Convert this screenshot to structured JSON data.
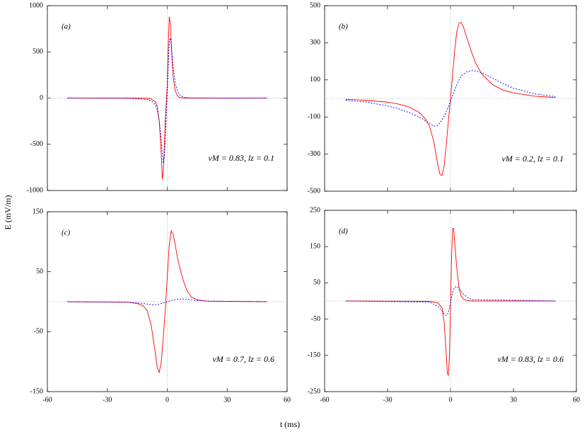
{
  "xlabel": "t (ms)",
  "ylabel": "E (mV/m)",
  "chart_data": [
    {
      "type": "line",
      "label": "(a)",
      "annotation": "vM = 0.83, lz = 0.1",
      "xlim": [
        -60,
        60
      ],
      "xticks": [
        -60,
        -30,
        0,
        30,
        60
      ],
      "ylim": [
        -1000,
        1000
      ],
      "yticks": [
        -1000,
        -500,
        0,
        500,
        1000
      ],
      "zero_lines": true,
      "x": [
        -50,
        -20,
        -10,
        -8,
        -6,
        -5,
        -4,
        -3,
        -2.5,
        -2,
        -1.5,
        -1,
        -0.5,
        0,
        0.5,
        1,
        1.5,
        2,
        2.5,
        3,
        4,
        5,
        6,
        8,
        10,
        20,
        50
      ],
      "series": [
        {
          "color": "#ff0000",
          "dash": "none",
          "values": [
            0,
            0,
            -2,
            -10,
            -40,
            -90,
            -250,
            -600,
            -880,
            -800,
            -550,
            -250,
            -50,
            150,
            550,
            880,
            820,
            600,
            380,
            220,
            80,
            25,
            8,
            2,
            0,
            0,
            0
          ]
        },
        {
          "color": "#0000ff",
          "dash": "2,2",
          "values": [
            0,
            -2,
            -15,
            -30,
            -70,
            -130,
            -250,
            -450,
            -600,
            -700,
            -650,
            -450,
            -200,
            50,
            350,
            600,
            650,
            580,
            450,
            330,
            170,
            80,
            40,
            10,
            3,
            0,
            0
          ]
        }
      ]
    },
    {
      "type": "line",
      "label": "(b)",
      "annotation": "vM = 0.2, lz = 0.1",
      "xlim": [
        -60,
        60
      ],
      "xticks": [
        -60,
        -30,
        0,
        30,
        60
      ],
      "ylim": [
        -500,
        500
      ],
      "yticks": [
        -500,
        -300,
        -100,
        100,
        300,
        500
      ],
      "zero_lines": true,
      "x": [
        -50,
        -40,
        -30,
        -25,
        -20,
        -15,
        -12,
        -10,
        -8,
        -6,
        -5,
        -4,
        -3,
        -2,
        -1,
        0,
        1,
        2,
        3,
        4,
        5,
        6,
        8,
        10,
        12,
        15,
        20,
        25,
        30,
        40,
        50
      ],
      "series": [
        {
          "color": "#ff0000",
          "dash": "none",
          "values": [
            -5,
            -10,
            -20,
            -30,
            -45,
            -75,
            -110,
            -150,
            -230,
            -360,
            -410,
            -415,
            -360,
            -250,
            -120,
            0,
            130,
            260,
            360,
            405,
            410,
            390,
            320,
            250,
            190,
            130,
            75,
            45,
            30,
            12,
            5
          ]
        },
        {
          "color": "#0000ff",
          "dash": "2,2",
          "values": [
            -10,
            -20,
            -40,
            -55,
            -75,
            -100,
            -120,
            -135,
            -150,
            -145,
            -130,
            -115,
            -95,
            -70,
            -45,
            -15,
            15,
            45,
            75,
            100,
            118,
            130,
            145,
            150,
            148,
            138,
            110,
            80,
            55,
            25,
            10
          ]
        }
      ]
    },
    {
      "type": "line",
      "label": "(c)",
      "annotation": "vM = 0.7, lz = 0.6",
      "xlim": [
        -60,
        60
      ],
      "xticks": [
        -60,
        -30,
        0,
        30,
        60
      ],
      "ylim": [
        -150,
        150
      ],
      "yticks": [
        -150,
        -50,
        50,
        150
      ],
      "zero_lines": true,
      "x": [
        -50,
        -20,
        -15,
        -12,
        -10,
        -8,
        -6,
        -5,
        -4,
        -3,
        -2,
        -1,
        0,
        1,
        2,
        3,
        4,
        5,
        6,
        8,
        10,
        12,
        15,
        20,
        50
      ],
      "series": [
        {
          "color": "#ff0000",
          "dash": "none",
          "values": [
            0,
            -1,
            -3,
            -7,
            -15,
            -40,
            -85,
            -110,
            -118,
            -100,
            -60,
            -15,
            40,
            95,
            118,
            112,
            95,
            75,
            60,
            35,
            18,
            8,
            3,
            1,
            0
          ]
        },
        {
          "color": "#0000ff",
          "dash": "2,2",
          "values": [
            0,
            -1,
            -2,
            -3,
            -4,
            -5,
            -5,
            -4.5,
            -4,
            -3,
            -2,
            -1,
            0,
            1,
            2,
            3,
            3.5,
            4,
            4.5,
            4.5,
            4,
            3,
            2,
            1,
            0
          ]
        }
      ]
    },
    {
      "type": "line",
      "label": "(d)",
      "annotation": "vM = 0.83, lz = 0.6",
      "xlim": [
        -60,
        60
      ],
      "xticks": [
        -60,
        -30,
        0,
        30,
        60
      ],
      "ylim": [
        -250,
        250
      ],
      "yticks": [
        -250,
        -150,
        -50,
        50,
        150,
        250
      ],
      "zero_lines": true,
      "x": [
        -50,
        -10,
        -6,
        -4,
        -3,
        -2,
        -1.5,
        -1,
        -0.5,
        0,
        0.5,
        1,
        1.5,
        2,
        3,
        4,
        5,
        6,
        8,
        10,
        50
      ],
      "series": [
        {
          "color": "#ff0000",
          "dash": "none",
          "values": [
            0,
            -1,
            -5,
            -20,
            -60,
            -150,
            -200,
            -205,
            -150,
            -20,
            120,
            200,
            200,
            160,
            90,
            40,
            15,
            6,
            1,
            0,
            0
          ]
        },
        {
          "color": "#0000ff",
          "dash": "2,2",
          "values": [
            0,
            -3,
            -15,
            -28,
            -36,
            -40,
            -38,
            -30,
            -18,
            -5,
            10,
            22,
            32,
            38,
            40,
            35,
            28,
            20,
            10,
            4,
            0
          ]
        }
      ]
    }
  ]
}
